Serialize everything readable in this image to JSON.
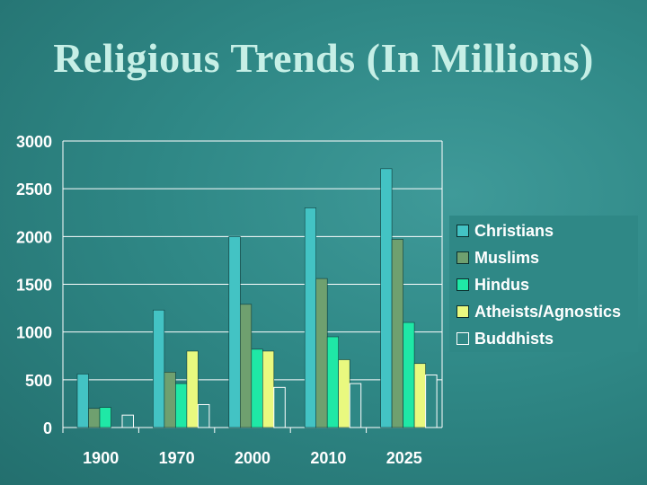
{
  "title": "Religious Trends (In Millions)",
  "chart_data": {
    "type": "bar",
    "title": "Religious Trends (In Millions)",
    "categories": [
      "1900",
      "1970",
      "2000",
      "2010",
      "2025"
    ],
    "yticks": [
      "0",
      "500",
      "1000",
      "1500",
      "2000",
      "2500",
      "3000"
    ],
    "ylim": [
      0,
      3000
    ],
    "series": [
      {
        "name": "Christians",
        "values": [
          560,
          1230,
          2000,
          2300,
          2710
        ]
      },
      {
        "name": "Muslims",
        "values": [
          200,
          580,
          1290,
          1560,
          1970
        ]
      },
      {
        "name": "Hindus",
        "values": [
          210,
          460,
          820,
          950,
          1100
        ]
      },
      {
        "name": "Atheists/Agnostics",
        "values": [
          0,
          800,
          800,
          710,
          670
        ]
      },
      {
        "name": "Buddhists",
        "values": [
          130,
          240,
          420,
          460,
          550
        ]
      }
    ],
    "colors": [
      "#43c3c4",
      "#6fa06f",
      "#1fe8a6",
      "#e9f97f",
      "#2f8886"
    ],
    "legend_position": "right"
  }
}
